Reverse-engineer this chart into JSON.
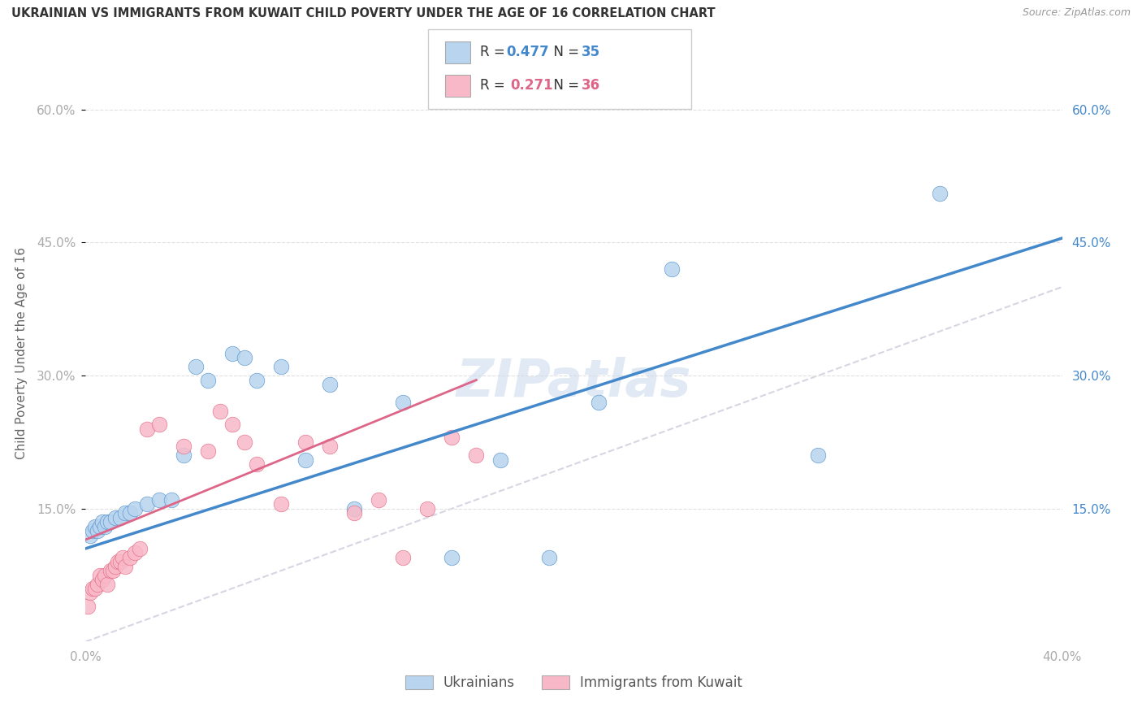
{
  "title": "UKRAINIAN VS IMMIGRANTS FROM KUWAIT CHILD POVERTY UNDER THE AGE OF 16 CORRELATION CHART",
  "source": "Source: ZipAtlas.com",
  "ylabel": "Child Poverty Under the Age of 16",
  "xlim": [
    0.0,
    0.4
  ],
  "ylim": [
    0.0,
    0.65
  ],
  "yticks": [
    0.15,
    0.3,
    0.45,
    0.6
  ],
  "ytick_labels": [
    "15.0%",
    "30.0%",
    "45.0%",
    "60.0%"
  ],
  "xticks": [
    0.0,
    0.1,
    0.2,
    0.3,
    0.4
  ],
  "xtick_labels": [
    "0.0%",
    "",
    "",
    "",
    "40.0%"
  ],
  "legend_blue_R": "0.477",
  "legend_blue_N": "35",
  "legend_pink_R": "0.271",
  "legend_pink_N": "36",
  "bottom_legend_blue": "Ukrainians",
  "bottom_legend_pink": "Immigrants from Kuwait",
  "blue_face_color": "#b8d4ee",
  "pink_face_color": "#f9b8c8",
  "blue_edge_color": "#5090cc",
  "pink_edge_color": "#e06880",
  "blue_line_color": "#4488cc",
  "pink_line_color": "#dd6688",
  "diagonal_color": "#ccccdd",
  "watermark": "ZIPatlas",
  "blue_scatter_x": [
    0.002,
    0.003,
    0.004,
    0.005,
    0.006,
    0.007,
    0.008,
    0.009,
    0.01,
    0.012,
    0.014,
    0.016,
    0.018,
    0.02,
    0.025,
    0.03,
    0.035,
    0.04,
    0.045,
    0.05,
    0.06,
    0.065,
    0.07,
    0.08,
    0.09,
    0.1,
    0.11,
    0.13,
    0.15,
    0.17,
    0.19,
    0.21,
    0.24,
    0.3,
    0.35
  ],
  "blue_scatter_y": [
    0.12,
    0.125,
    0.13,
    0.125,
    0.13,
    0.135,
    0.13,
    0.135,
    0.135,
    0.14,
    0.14,
    0.145,
    0.145,
    0.15,
    0.155,
    0.16,
    0.16,
    0.21,
    0.31,
    0.295,
    0.325,
    0.32,
    0.295,
    0.31,
    0.205,
    0.29,
    0.15,
    0.27,
    0.095,
    0.205,
    0.095,
    0.27,
    0.42,
    0.21,
    0.505
  ],
  "pink_scatter_x": [
    0.001,
    0.002,
    0.003,
    0.004,
    0.005,
    0.006,
    0.007,
    0.008,
    0.009,
    0.01,
    0.011,
    0.012,
    0.013,
    0.014,
    0.015,
    0.016,
    0.018,
    0.02,
    0.022,
    0.025,
    0.03,
    0.04,
    0.05,
    0.055,
    0.06,
    0.065,
    0.07,
    0.08,
    0.09,
    0.1,
    0.11,
    0.12,
    0.13,
    0.14,
    0.15,
    0.16
  ],
  "pink_scatter_y": [
    0.04,
    0.055,
    0.06,
    0.06,
    0.065,
    0.075,
    0.07,
    0.075,
    0.065,
    0.08,
    0.08,
    0.085,
    0.09,
    0.09,
    0.095,
    0.085,
    0.095,
    0.1,
    0.105,
    0.24,
    0.245,
    0.22,
    0.215,
    0.26,
    0.245,
    0.225,
    0.2,
    0.155,
    0.225,
    0.22,
    0.145,
    0.16,
    0.095,
    0.15,
    0.23,
    0.21
  ],
  "blue_line_x0": 0.0,
  "blue_line_x1": 0.4,
  "blue_line_y0": 0.105,
  "blue_line_y1": 0.455,
  "pink_line_x0": 0.0,
  "pink_line_x1": 0.16,
  "pink_line_y0": 0.115,
  "pink_line_y1": 0.295
}
